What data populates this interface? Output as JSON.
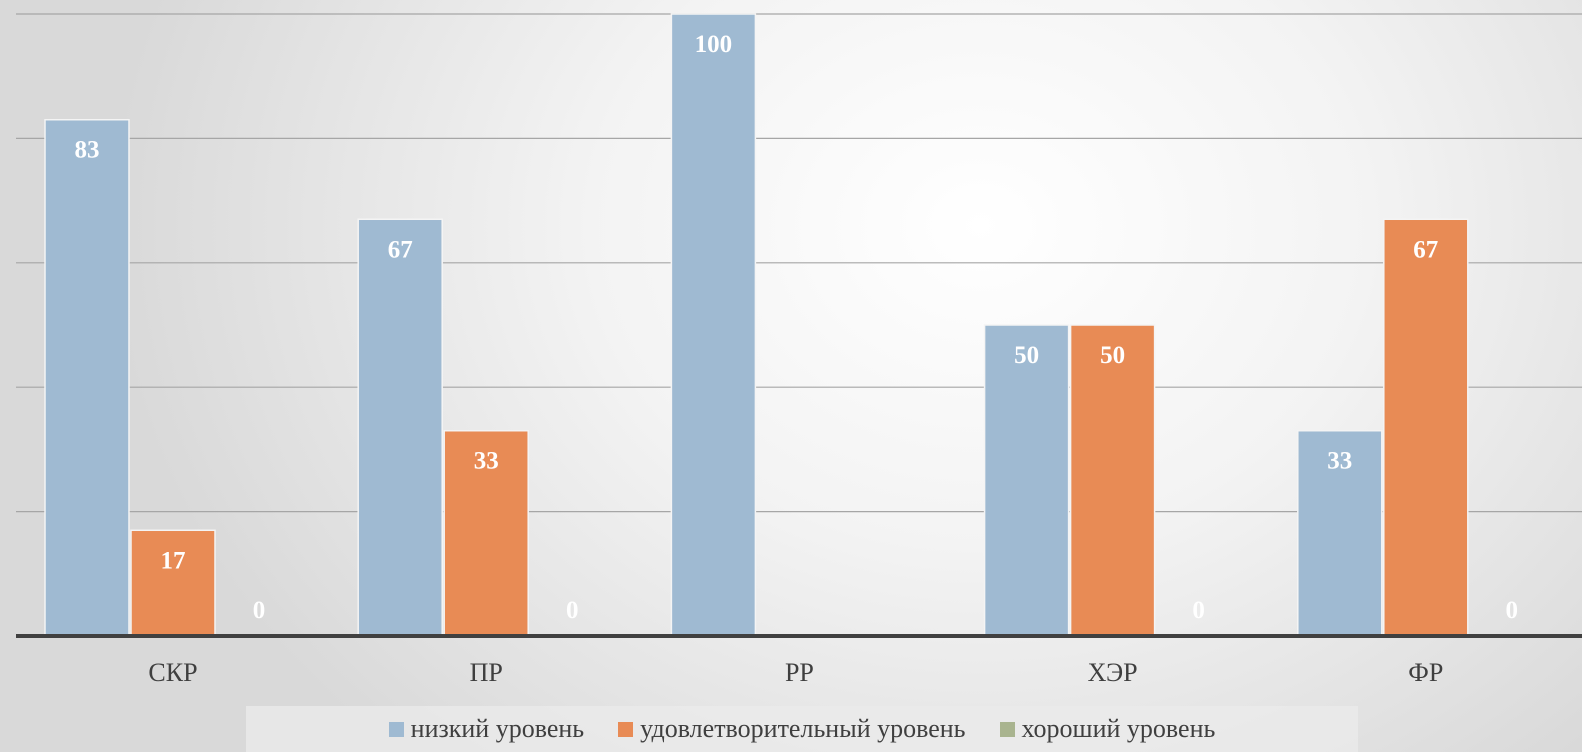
{
  "chart_data": {
    "type": "bar",
    "categories": [
      "СКР",
      "ПР",
      "РР",
      "ХЭР",
      "ФР"
    ],
    "series": [
      {
        "name": "низкий уровень",
        "color": "#9fbad2",
        "values": [
          83,
          67,
          100,
          50,
          33
        ]
      },
      {
        "name": "удовлетворительный уровень",
        "color": "#e88b55",
        "values": [
          17,
          33,
          null,
          50,
          67
        ]
      },
      {
        "name": "хороший уровень",
        "color": "#a9b48f",
        "values": [
          0,
          0,
          null,
          0,
          0
        ]
      }
    ],
    "ylim": [
      0,
      100
    ],
    "grid": true,
    "legend_position": "bottom",
    "data_labels": true
  }
}
